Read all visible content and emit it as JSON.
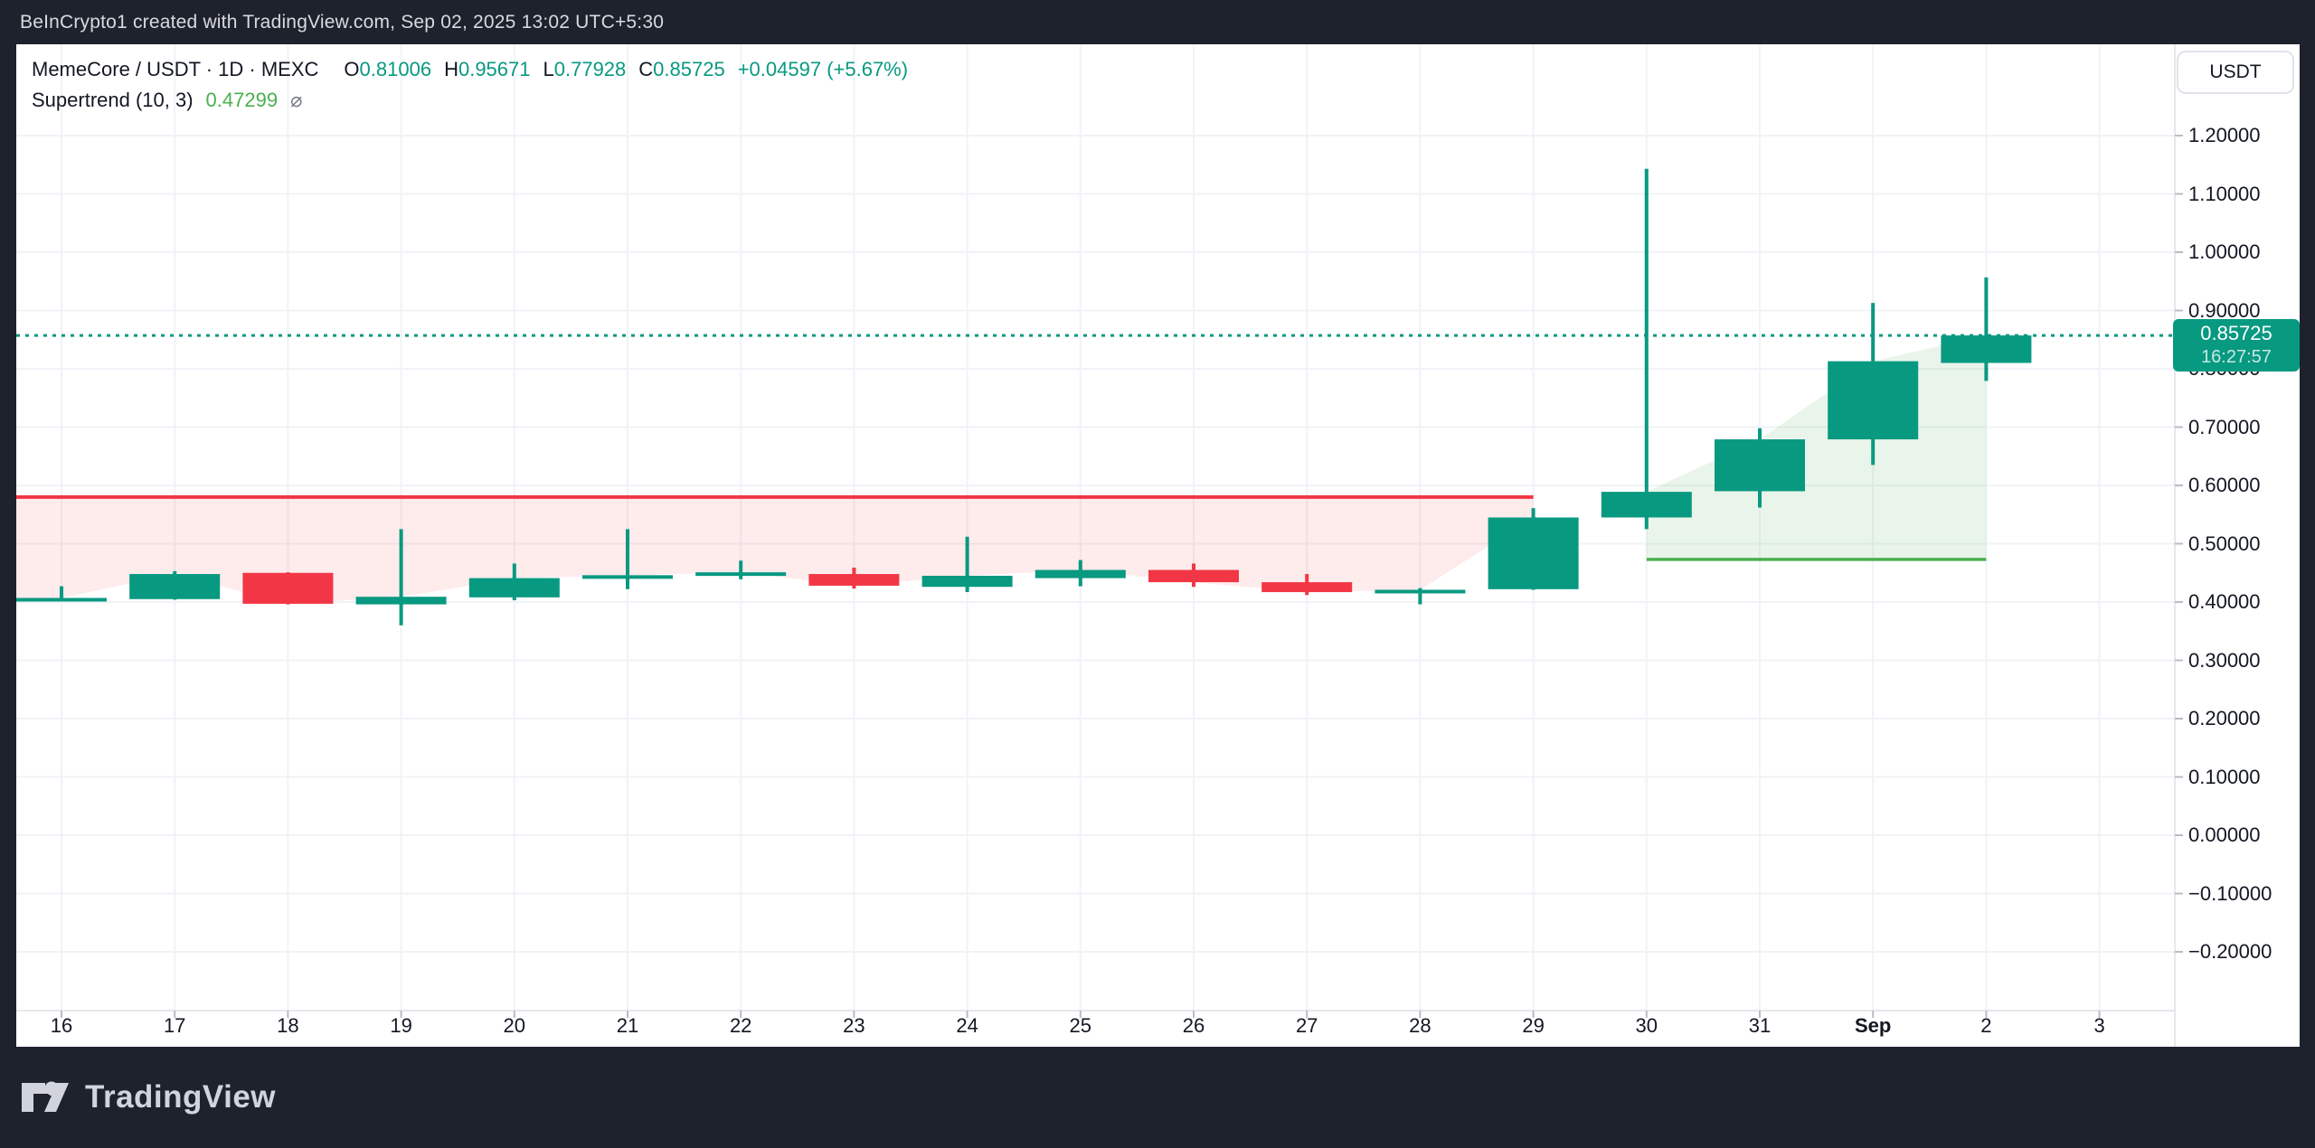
{
  "header": {
    "attribution": "BeInCrypto1 created with TradingView.com, Sep 02, 2025 13:02 UTC+5:30"
  },
  "legend": {
    "symbol": "MemeCore / USDT · 1D · MEXC",
    "o_label": "O",
    "o_value": "0.81006",
    "h_label": "H",
    "h_value": "0.95671",
    "l_label": "L",
    "l_value": "0.77928",
    "c_label": "C",
    "c_value": "0.85725",
    "change": "+0.04597 (+5.67%)",
    "indicator_name": "Supertrend (10, 3)",
    "indicator_value": "0.47299",
    "indicator_hidden_icon": "⌀"
  },
  "price_axis": {
    "currency_button": "USDT",
    "ticks": [
      {
        "label": "1.20000",
        "value": 1.2
      },
      {
        "label": "1.10000",
        "value": 1.1
      },
      {
        "label": "1.00000",
        "value": 1.0
      },
      {
        "label": "0.90000",
        "value": 0.9
      },
      {
        "label": "0.80000",
        "value": 0.8
      },
      {
        "label": "0.70000",
        "value": 0.7
      },
      {
        "label": "0.60000",
        "value": 0.6
      },
      {
        "label": "0.50000",
        "value": 0.5
      },
      {
        "label": "0.40000",
        "value": 0.4
      },
      {
        "label": "0.30000",
        "value": 0.3
      },
      {
        "label": "0.20000",
        "value": 0.2
      },
      {
        "label": "0.10000",
        "value": 0.1
      },
      {
        "label": "0.00000",
        "value": 0.0
      },
      {
        "label": "−0.10000",
        "value": -0.1
      },
      {
        "label": "−0.20000",
        "value": -0.2
      }
    ],
    "last_price_badge": {
      "price": "0.85725",
      "countdown": "16:27:57"
    }
  },
  "time_axis": {
    "labels": [
      {
        "text": "16"
      },
      {
        "text": "17"
      },
      {
        "text": "18"
      },
      {
        "text": "19"
      },
      {
        "text": "20"
      },
      {
        "text": "21"
      },
      {
        "text": "22"
      },
      {
        "text": "23"
      },
      {
        "text": "24"
      },
      {
        "text": "25"
      },
      {
        "text": "26"
      },
      {
        "text": "27"
      },
      {
        "text": "28"
      },
      {
        "text": "29"
      },
      {
        "text": "30"
      },
      {
        "text": "31"
      },
      {
        "text": "Sep",
        "bold": true
      },
      {
        "text": "2"
      },
      {
        "text": "3"
      }
    ]
  },
  "footer": {
    "logo_text": "TradingView"
  },
  "colors": {
    "up": "#089981",
    "down": "#F23645",
    "supertrend_down_line": "#F23645",
    "supertrend_down_fill": "rgba(242,54,69,0.10)",
    "supertrend_up_line": "#4CAF50",
    "supertrend_up_fill": "rgba(76,175,80,0.12)",
    "last_price_line": "#089981",
    "badge_bg": "#089981",
    "grid": "#f0f3f7",
    "axis_border": "#e6e8ec",
    "frame_bg": "#1e222d"
  },
  "chart_data": {
    "type": "candlestick",
    "title": "MemeCore / USDT · 1D · MEXC",
    "interval": "1D",
    "exchange": "MEXC",
    "ylim": [
      -0.27,
      1.36
    ],
    "grid": true,
    "last_price": 0.85725,
    "candles": [
      {
        "date": "Aug 16",
        "o": 0.404,
        "h": 0.427,
        "l": 0.403,
        "c": 0.407
      },
      {
        "date": "Aug 17",
        "o": 0.405,
        "h": 0.453,
        "l": 0.404,
        "c": 0.448
      },
      {
        "date": "Aug 18",
        "o": 0.45,
        "h": 0.451,
        "l": 0.396,
        "c": 0.397
      },
      {
        "date": "Aug 19",
        "o": 0.396,
        "h": 0.525,
        "l": 0.36,
        "c": 0.409
      },
      {
        "date": "Aug 20",
        "o": 0.408,
        "h": 0.466,
        "l": 0.403,
        "c": 0.441
      },
      {
        "date": "Aug 21",
        "o": 0.444,
        "h": 0.525,
        "l": 0.422,
        "c": 0.446
      },
      {
        "date": "Aug 22",
        "o": 0.449,
        "h": 0.471,
        "l": 0.439,
        "c": 0.451
      },
      {
        "date": "Aug 23",
        "o": 0.448,
        "h": 0.459,
        "l": 0.423,
        "c": 0.428
      },
      {
        "date": "Aug 24",
        "o": 0.426,
        "h": 0.512,
        "l": 0.417,
        "c": 0.445
      },
      {
        "date": "Aug 25",
        "o": 0.441,
        "h": 0.472,
        "l": 0.427,
        "c": 0.455
      },
      {
        "date": "Aug 26",
        "o": 0.455,
        "h": 0.466,
        "l": 0.426,
        "c": 0.434
      },
      {
        "date": "Aug 27",
        "o": 0.434,
        "h": 0.448,
        "l": 0.412,
        "c": 0.417
      },
      {
        "date": "Aug 28",
        "o": 0.419,
        "h": 0.424,
        "l": 0.396,
        "c": 0.421
      },
      {
        "date": "Aug 29",
        "o": 0.422,
        "h": 0.561,
        "l": 0.421,
        "c": 0.545
      },
      {
        "date": "Aug 30",
        "o": 0.545,
        "h": 1.143,
        "l": 0.525,
        "c": 0.589
      },
      {
        "date": "Aug 31",
        "o": 0.59,
        "h": 0.698,
        "l": 0.562,
        "c": 0.679
      },
      {
        "date": "Sep 1",
        "o": 0.679,
        "h": 0.913,
        "l": 0.635,
        "c": 0.813
      },
      {
        "date": "Sep 2",
        "o": 0.81006,
        "h": 0.95671,
        "l": 0.77928,
        "c": 0.85725
      }
    ],
    "indicator": {
      "name": "Supertrend",
      "params": "(10, 3)",
      "current_value": 0.47299,
      "down_segment": {
        "value": 0.58,
        "from_index": 0,
        "to_index": 13
      },
      "up_segment": {
        "value": 0.473,
        "from_index": 14,
        "to_index": 17
      }
    }
  }
}
